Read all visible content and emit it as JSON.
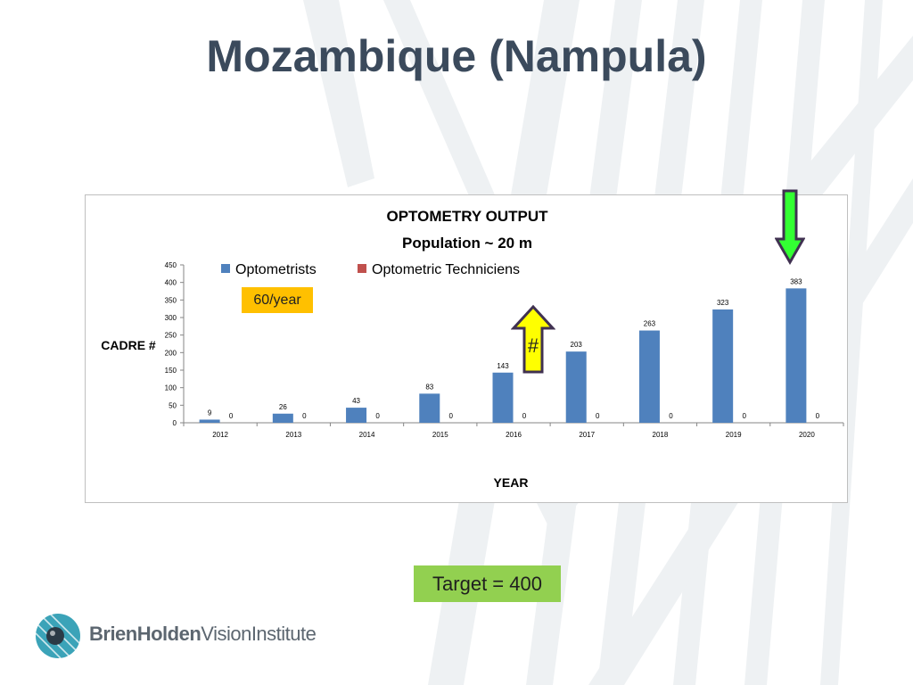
{
  "slide": {
    "title": "Mozambique (Nampula)",
    "rate_callout": "60/year",
    "target_callout": "Target = 400",
    "marker_symbol": "#"
  },
  "logo": {
    "icon": "eye-icon",
    "name_bold": "BrienHolden",
    "name_regular": "VisionInstitute"
  },
  "colors": {
    "title": "#3b4a5c",
    "optometrists": "#4f81bd",
    "technicians": "#c0504d",
    "rate_callout_bg": "#ffc000",
    "target_callout_bg": "#92d050",
    "up_arrow_fill": "#ffff00",
    "up_arrow_stroke": "#403151",
    "down_arrow_fill": "#33ff33"
  },
  "chart_data": {
    "type": "bar",
    "title": "OPTOMETRY OUTPUT",
    "subtitle": "Population ~ 20 m",
    "xlabel": "YEAR",
    "ylabel": "CADRE #",
    "categories": [
      "2012",
      "2013",
      "2014",
      "2015",
      "2016",
      "2017",
      "2018",
      "2019",
      "2020"
    ],
    "series": [
      {
        "name": "Optometrists",
        "values": [
          9,
          26,
          43,
          83,
          143,
          203,
          263,
          323,
          383
        ]
      },
      {
        "name": "Optometric Techniciens",
        "values": [
          0,
          0,
          0,
          0,
          0,
          0,
          0,
          0,
          0
        ]
      }
    ],
    "ylim": [
      0,
      450
    ],
    "yticks": [
      0,
      50,
      100,
      150,
      200,
      250,
      300,
      350,
      400,
      450
    ],
    "grid": false,
    "legend": "top",
    "data_labels": true
  }
}
